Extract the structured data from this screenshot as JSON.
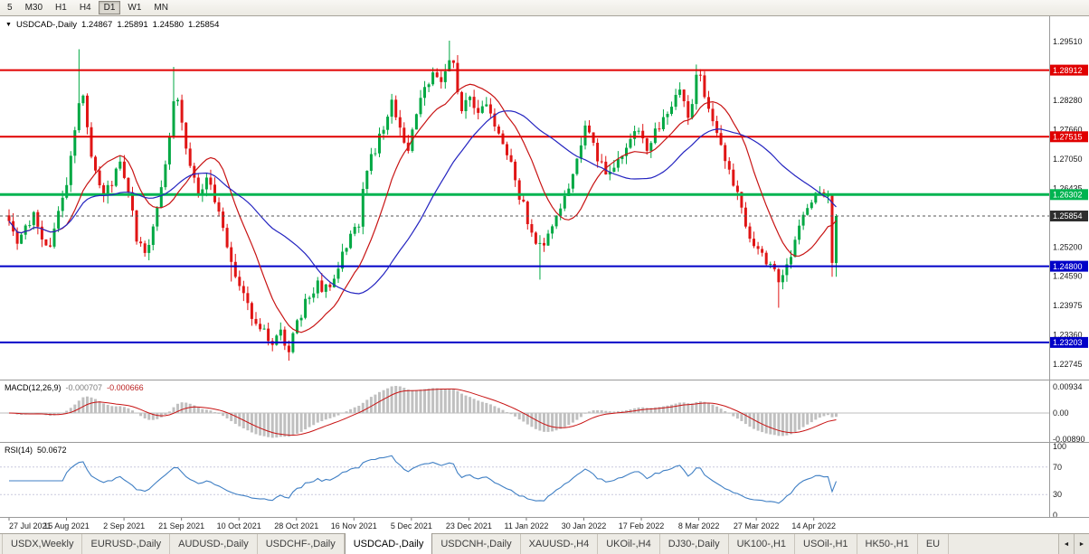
{
  "toolbar": {
    "timeframes": [
      "5",
      "M30",
      "H1",
      "H4",
      "D1",
      "W1",
      "MN"
    ],
    "active": "D1"
  },
  "chart_title": {
    "marker": "▼",
    "symbol": "USDCAD-,Daily",
    "open": "1.24867",
    "high": "1.25891",
    "low": "1.24580",
    "close": "1.25854"
  },
  "indicators": {
    "macd": {
      "label": "MACD(12,26,9)",
      "main_value": "-0.000707",
      "signal_value": "-0.000666",
      "axis_labels": [
        "0.00934",
        "0.00",
        "-0.00890"
      ]
    },
    "rsi": {
      "label": "RSI(14)",
      "value": "50.0672",
      "axis_labels": [
        "100",
        "70",
        "30",
        "0"
      ],
      "axis_values": [
        100,
        70,
        30,
        0
      ],
      "levels": [
        70,
        30
      ]
    }
  },
  "chart_data": {
    "type": "candlestick",
    "symbol": "USDCAD",
    "timeframe": "Daily",
    "title": "USDCAD-,Daily",
    "last_ohlc": {
      "open": 1.24867,
      "high": 1.25891,
      "low": 1.2458,
      "close": 1.25854
    },
    "x_axis_dates": [
      "27 Jul 2021",
      "15 Aug 2021",
      "2 Sep 2021",
      "21 Sep 2021",
      "10 Oct 2021",
      "28 Oct 2021",
      "16 Nov 2021",
      "5 Dec 2021",
      "23 Dec 2021",
      "11 Jan 2022",
      "30 Jan 2022",
      "17 Feb 2022",
      "8 Mar 2022",
      "27 Mar 2022",
      "14 Apr 2022"
    ],
    "price_axis_ticks": [
      "1.29510",
      "1.28280",
      "1.27660",
      "1.27050",
      "1.26435",
      "1.25200",
      "1.24590",
      "1.23975",
      "1.23360",
      "1.22745"
    ],
    "ylim": [
      1.2244,
      1.2998
    ],
    "h_lines": [
      {
        "price": 1.28912,
        "label": "1.28912",
        "color": "#e00000",
        "width": 2
      },
      {
        "price": 1.27515,
        "label": "1.27515",
        "color": "#e00000",
        "width": 2
      },
      {
        "price": 1.26302,
        "label": "1.26302",
        "color": "#00b450",
        "width": 3
      },
      {
        "price": 1.248,
        "label": "1.24800",
        "color": "#0000c8",
        "width": 2
      },
      {
        "price": 1.23203,
        "label": "1.23203",
        "color": "#0000c8",
        "width": 2
      }
    ],
    "current_price": {
      "price": 1.25854,
      "label": "1.25854",
      "color": "#2e2e2e"
    },
    "candle_count": 202,
    "price_anchors": [
      [
        0,
        1.2568
      ],
      [
        2,
        1.2525
      ],
      [
        4,
        1.2555
      ],
      [
        6,
        1.2585
      ],
      [
        8,
        1.254
      ],
      [
        10,
        1.2528
      ],
      [
        12,
        1.259
      ],
      [
        14,
        1.264
      ],
      [
        16,
        1.276
      ],
      [
        17,
        1.283
      ],
      [
        18,
        1.2845
      ],
      [
        19,
        1.276
      ],
      [
        21,
        1.268
      ],
      [
        23,
        1.2625
      ],
      [
        25,
        1.266
      ],
      [
        27,
        1.2695
      ],
      [
        29,
        1.264
      ],
      [
        31,
        1.2535
      ],
      [
        33,
        1.2505
      ],
      [
        35,
        1.256
      ],
      [
        37,
        1.264
      ],
      [
        39,
        1.276
      ],
      [
        40,
        1.2825
      ],
      [
        41,
        1.284
      ],
      [
        42,
        1.277
      ],
      [
        44,
        1.269
      ],
      [
        46,
        1.264
      ],
      [
        48,
        1.266
      ],
      [
        50,
        1.262
      ],
      [
        52,
        1.255
      ],
      [
        54,
        1.249
      ],
      [
        56,
        1.243
      ],
      [
        58,
        1.2395
      ],
      [
        60,
        1.2365
      ],
      [
        62,
        1.2345
      ],
      [
        64,
        1.2325
      ],
      [
        66,
        1.234
      ],
      [
        68,
        1.231
      ],
      [
        69,
        1.233
      ],
      [
        71,
        1.238
      ],
      [
        73,
        1.242
      ],
      [
        75,
        1.244
      ],
      [
        77,
        1.243
      ],
      [
        79,
        1.2455
      ],
      [
        81,
        1.2505
      ],
      [
        83,
        1.2545
      ],
      [
        85,
        1.2575
      ],
      [
        86,
        1.264
      ],
      [
        88,
        1.2705
      ],
      [
        90,
        1.275
      ],
      [
        92,
        1.2805
      ],
      [
        93,
        1.283
      ],
      [
        95,
        1.277
      ],
      [
        97,
        1.273
      ],
      [
        99,
        1.279
      ],
      [
        101,
        1.2855
      ],
      [
        103,
        1.288
      ],
      [
        105,
        1.286
      ],
      [
        107,
        1.292
      ],
      [
        108,
        1.2895
      ],
      [
        110,
        1.28
      ],
      [
        112,
        1.284
      ],
      [
        114,
        1.28
      ],
      [
        116,
        1.282
      ],
      [
        118,
        1.278
      ],
      [
        120,
        1.274
      ],
      [
        122,
        1.269
      ],
      [
        124,
        1.263
      ],
      [
        126,
        1.258
      ],
      [
        128,
        1.2535
      ],
      [
        130,
        1.252
      ],
      [
        132,
        1.257
      ],
      [
        134,
        1.2605
      ],
      [
        136,
        1.264
      ],
      [
        138,
        1.271
      ],
      [
        140,
        1.2775
      ],
      [
        141,
        1.276
      ],
      [
        143,
        1.271
      ],
      [
        145,
        1.2665
      ],
      [
        147,
        1.269
      ],
      [
        149,
        1.272
      ],
      [
        151,
        1.275
      ],
      [
        153,
        1.277
      ],
      [
        155,
        1.2715
      ],
      [
        157,
        1.276
      ],
      [
        159,
        1.279
      ],
      [
        161,
        1.282
      ],
      [
        163,
        1.2845
      ],
      [
        165,
        1.279
      ],
      [
        167,
        1.287
      ],
      [
        168,
        1.288
      ],
      [
        170,
        1.2805
      ],
      [
        172,
        1.275
      ],
      [
        174,
        1.27
      ],
      [
        176,
        1.265
      ],
      [
        178,
        1.26
      ],
      [
        180,
        1.2535
      ],
      [
        182,
        1.251
      ],
      [
        184,
        1.249
      ],
      [
        186,
        1.247
      ],
      [
        187,
        1.2455
      ],
      [
        189,
        1.249
      ],
      [
        191,
        1.253
      ],
      [
        193,
        1.259
      ],
      [
        195,
        1.2615
      ],
      [
        197,
        1.2635
      ],
      [
        199,
        1.2628
      ],
      [
        200,
        1.2487
      ],
      [
        201,
        1.25854
      ]
    ],
    "spikes": [
      {
        "i": 17,
        "high": 1.2935
      },
      {
        "i": 40,
        "high": 1.2898
      },
      {
        "i": 54,
        "low": 1.2448
      },
      {
        "i": 68,
        "low": 1.2282
      },
      {
        "i": 107,
        "high": 1.2953
      },
      {
        "i": 129,
        "low": 1.2452
      },
      {
        "i": 167,
        "high": 1.2903
      },
      {
        "i": 187,
        "low": 1.2393
      },
      {
        "i": 200,
        "low": 1.2458
      }
    ],
    "explicit_candles": [
      {
        "i": 201,
        "o": 1.24867,
        "h": 1.25891,
        "l": 1.2458,
        "c": 1.25854
      }
    ],
    "moving_averages": [
      {
        "name": "ma-fast",
        "period": 13,
        "color": "#c81414"
      },
      {
        "name": "ma-slow",
        "period": 34,
        "color": "#2424c0"
      }
    ],
    "colors": {
      "up": "#00a843",
      "down": "#e01515",
      "macd_hist": "#c0c0c0",
      "macd_signal": "#c81414",
      "rsi": "#3f7fc4"
    }
  },
  "tabs": {
    "items": [
      "USDX,Weekly",
      "EURUSD-,Daily",
      "AUDUSD-,Daily",
      "USDCHF-,Daily",
      "USDCAD-,Daily",
      "USDCNH-,Daily",
      "XAUUSD-,H4",
      "UKOil-,H4",
      "DJ30-,Daily",
      "UK100-,H1",
      "USOil-,H1",
      "HK50-,H1",
      "EU"
    ],
    "active": "USDCAD-,Daily",
    "scroll_left": "◄",
    "scroll_right": "►"
  }
}
